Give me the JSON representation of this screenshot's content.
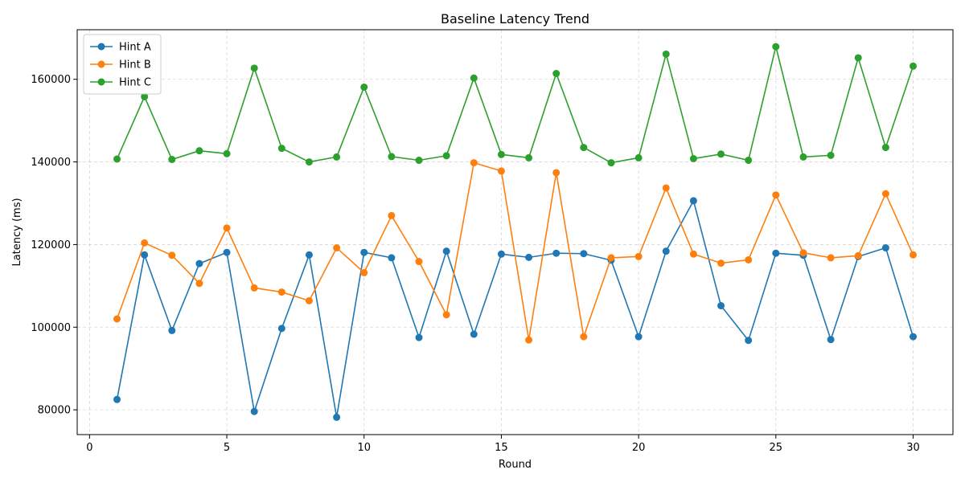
{
  "chart_data": {
    "type": "line",
    "title": "Baseline Latency Trend",
    "xlabel": "Round",
    "ylabel": "Latency (ms)",
    "xlim": [
      -0.45,
      31.45
    ],
    "ylim": [
      74000,
      172000
    ],
    "xticks": [
      0,
      5,
      10,
      15,
      20,
      25,
      30
    ],
    "yticks": [
      80000,
      100000,
      120000,
      140000,
      160000
    ],
    "grid": true,
    "legend_position": "upper left",
    "x": [
      1,
      2,
      3,
      4,
      5,
      6,
      7,
      8,
      9,
      10,
      11,
      12,
      13,
      14,
      15,
      16,
      17,
      18,
      19,
      20,
      21,
      22,
      23,
      24,
      25,
      26,
      27,
      28,
      29,
      30
    ],
    "series": [
      {
        "name": "Hint A",
        "color": "#1f77b4",
        "values": [
          82500,
          117500,
          99200,
          115400,
          118100,
          79600,
          99700,
          117500,
          78200,
          118100,
          116800,
          97500,
          118400,
          98300,
          117700,
          116900,
          117900,
          117800,
          116200,
          97700,
          118400,
          130600,
          105200,
          96800,
          117900,
          117400,
          97000,
          117100,
          119200,
          97700
        ]
      },
      {
        "name": "Hint B",
        "color": "#ff7f0e",
        "values": [
          102000,
          120400,
          117400,
          110600,
          124000,
          109500,
          108500,
          106400,
          119200,
          113200,
          127000,
          115900,
          103000,
          139800,
          137800,
          96900,
          137400,
          97700,
          116800,
          117100,
          133700,
          117700,
          115500,
          116300,
          132000,
          118000,
          116800,
          117300,
          132300,
          117500
        ]
      },
      {
        "name": "Hint C",
        "color": "#2ca02c",
        "values": [
          140700,
          155800,
          140600,
          142700,
          142000,
          162700,
          143300,
          140000,
          141200,
          158100,
          141300,
          140400,
          141500,
          160300,
          141800,
          141000,
          161400,
          143500,
          139800,
          141000,
          166100,
          140800,
          141900,
          140400,
          167900,
          141200,
          141600,
          165200,
          143500,
          163200
        ]
      }
    ]
  }
}
